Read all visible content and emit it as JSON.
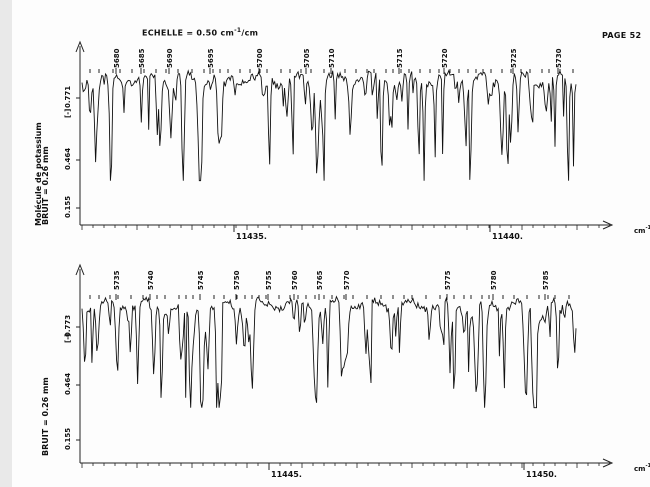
{
  "header": {
    "scale_prefix": "ECHELLE = 0.50 cm",
    "scale_exp": "-1",
    "scale_suffix": "/cm",
    "page_label": "PAGE 52"
  },
  "side_label": "Molécule de potassium",
  "chart_data": [
    {
      "type": "line",
      "xlabel": "cm-1",
      "xlim": [
        11433.3,
        11441.8
      ],
      "x_tick_labels": [
        "11435.",
        "11440."
      ],
      "y_tick_labels": [
        "0.155",
        "0.464",
        "0.771"
      ],
      "y_axis_title": "BRUIT = 0.26 mm",
      "y_axis_symbol": "[-]",
      "line_number_labels": [
        "5680",
        "5685",
        "5690",
        "5695",
        "5700",
        "5705",
        "5710",
        "5715",
        "5720",
        "5725",
        "5730"
      ],
      "series": [
        {
          "seed": 7,
          "n_points": 400,
          "baseline_fraction": 0.85
        }
      ]
    },
    {
      "type": "line",
      "xlabel": "cm-1",
      "xlim": [
        11444.4,
        11451.8
      ],
      "x_tick_labels": [
        "11445.",
        "11450."
      ],
      "y_tick_labels": [
        "0.155",
        "0.464",
        "0.773"
      ],
      "y_axis_title": "BRUIT = 0.26 mm",
      "y_axis_symbol": "[-]",
      "line_number_labels": [
        "5735",
        "5740",
        "5745",
        "5750",
        "5755",
        "5760",
        "5765",
        "5770",
        "5775",
        "5780",
        "5785"
      ],
      "series": [
        {
          "seed": 13,
          "n_points": 400,
          "baseline_fraction": 0.85
        }
      ]
    }
  ]
}
